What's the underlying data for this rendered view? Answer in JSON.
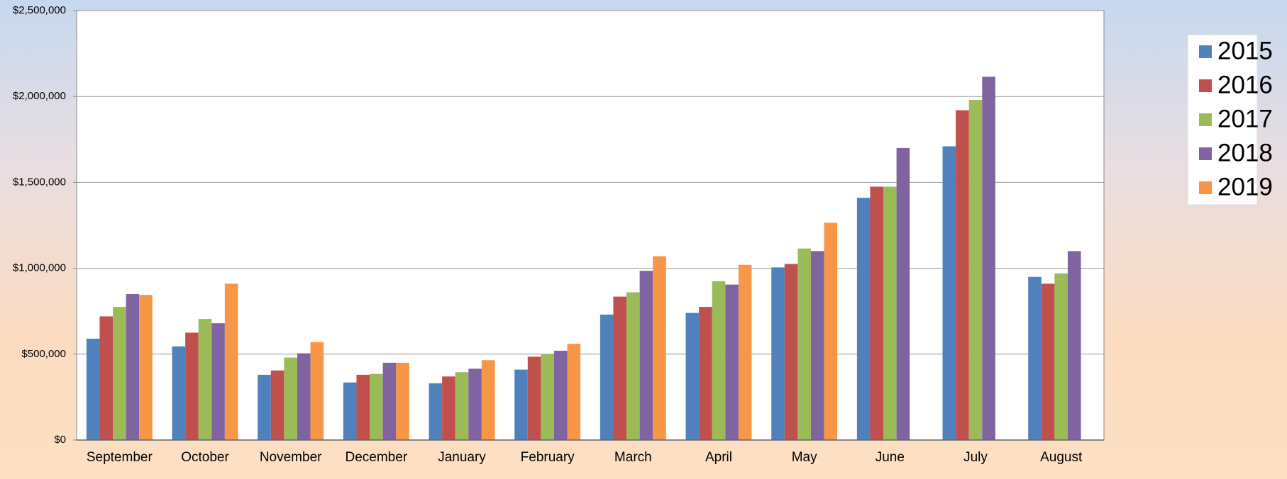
{
  "chart_data": {
    "type": "bar",
    "categories": [
      "September",
      "October",
      "November",
      "December",
      "January",
      "February",
      "March",
      "April",
      "May",
      "June",
      "July",
      "August"
    ],
    "series": [
      {
        "name": "2015",
        "color": "#4f81bd",
        "values": [
          590000,
          545000,
          380000,
          335000,
          330000,
          410000,
          730000,
          740000,
          1005000,
          1410000,
          1710000,
          950000
        ]
      },
      {
        "name": "2016",
        "color": "#c0504d",
        "values": [
          720000,
          625000,
          405000,
          380000,
          370000,
          485000,
          835000,
          775000,
          1025000,
          1475000,
          1920000,
          910000
        ]
      },
      {
        "name": "2017",
        "color": "#9bbb59",
        "values": [
          775000,
          705000,
          480000,
          385000,
          395000,
          500000,
          860000,
          925000,
          1115000,
          1475000,
          1980000,
          970000
        ]
      },
      {
        "name": "2018",
        "color": "#8064a2",
        "values": [
          850000,
          680000,
          505000,
          450000,
          415000,
          520000,
          985000,
          905000,
          1100000,
          1700000,
          2115000,
          1100000
        ]
      },
      {
        "name": "2019",
        "color": "#f79646",
        "values": [
          845000,
          910000,
          570000,
          450000,
          465000,
          560000,
          1070000,
          1020000,
          1265000,
          null,
          null,
          null
        ]
      }
    ],
    "ylim": [
      0,
      2500000
    ],
    "yticks": [
      {
        "value": 0,
        "label": "$0"
      },
      {
        "value": 500000,
        "label": "$500,000"
      },
      {
        "value": 1000000,
        "label": "$1,000,000"
      },
      {
        "value": 1500000,
        "label": "$1,500,000"
      },
      {
        "value": 2000000,
        "label": "$2,000,000"
      },
      {
        "value": 2500000,
        "label": "$2,500,000"
      }
    ],
    "grid": true,
    "legend": "right"
  }
}
